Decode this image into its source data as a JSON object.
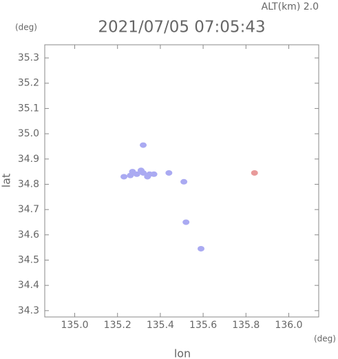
{
  "chart_data": {
    "type": "scatter",
    "title": "2021/07/05 07:05:43",
    "subtitle": "ALT(km) 2.0",
    "y_unit": "(deg)",
    "x_unit": "(deg)",
    "xlabel": "lon",
    "ylabel": "lat",
    "xlim": [
      134.86,
      136.14
    ],
    "ylim": [
      34.275,
      35.352
    ],
    "xticks": [
      {
        "value": 135,
        "label": "135.0"
      },
      135.2,
      135.4,
      135.6,
      135.8,
      {
        "value": 136,
        "label": "136.0"
      }
    ],
    "yticks": [
      34.3,
      34.4,
      34.5,
      34.6,
      34.7,
      34.8,
      34.9,
      {
        "value": 35,
        "label": "35.0"
      },
      35.1,
      35.2,
      35.3
    ],
    "series": [
      {
        "color": "#aaaaf2",
        "x": [
          135.23,
          135.26,
          135.29,
          135.32,
          135.35,
          135.27,
          135.31,
          135.34,
          135.37,
          135.44,
          135.32,
          135.51,
          135.52,
          135.59
        ],
        "values": [
          34.83,
          34.835,
          34.84,
          34.845,
          34.84,
          34.85,
          34.855,
          34.83,
          34.84,
          34.845,
          34.955,
          34.81,
          34.65,
          34.545
        ]
      },
      {
        "color": "#e89a9a",
        "x": [
          135.84
        ],
        "values": [
          34.845
        ]
      }
    ]
  }
}
